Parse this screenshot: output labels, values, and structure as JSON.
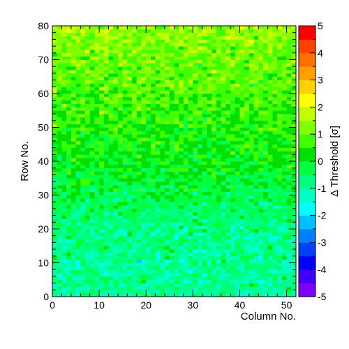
{
  "chart_data": {
    "type": "heatmap",
    "title": "",
    "xlabel": "Column No.",
    "ylabel": "Row No.",
    "zlabel": "Δ Threshold [σ]",
    "xlim": [
      0,
      52
    ],
    "ylim": [
      0,
      80
    ],
    "zlim": [
      -5,
      5
    ],
    "x_ticks": [
      0,
      10,
      20,
      30,
      40,
      50
    ],
    "y_ticks": [
      0,
      10,
      20,
      30,
      40,
      50,
      60,
      70,
      80
    ],
    "z_ticks": [
      -5,
      -4,
      -3,
      -2,
      -1,
      0,
      1,
      2,
      3,
      4,
      5
    ],
    "n_columns": 52,
    "n_rows": 80,
    "grid": false,
    "colormap": [
      "#8000ff",
      "#4000ff",
      "#0000ff",
      "#0040ff",
      "#0080ff",
      "#00c0ff",
      "#00ffff",
      "#00ffc0",
      "#00ff80",
      "#00ff40",
      "#00e000",
      "#40ff00",
      "#80ff00",
      "#c0ff00",
      "#ffff00",
      "#ffd000",
      "#ffa000",
      "#ff7000",
      "#ff4000",
      "#ff0000"
    ],
    "value_trend_by_row": {
      "row_0": -0.9,
      "row_20": -0.8,
      "row_40": 0.2,
      "row_60": 0.8,
      "row_80": 1.4
    },
    "value_spread_sigma": 0.55
  }
}
